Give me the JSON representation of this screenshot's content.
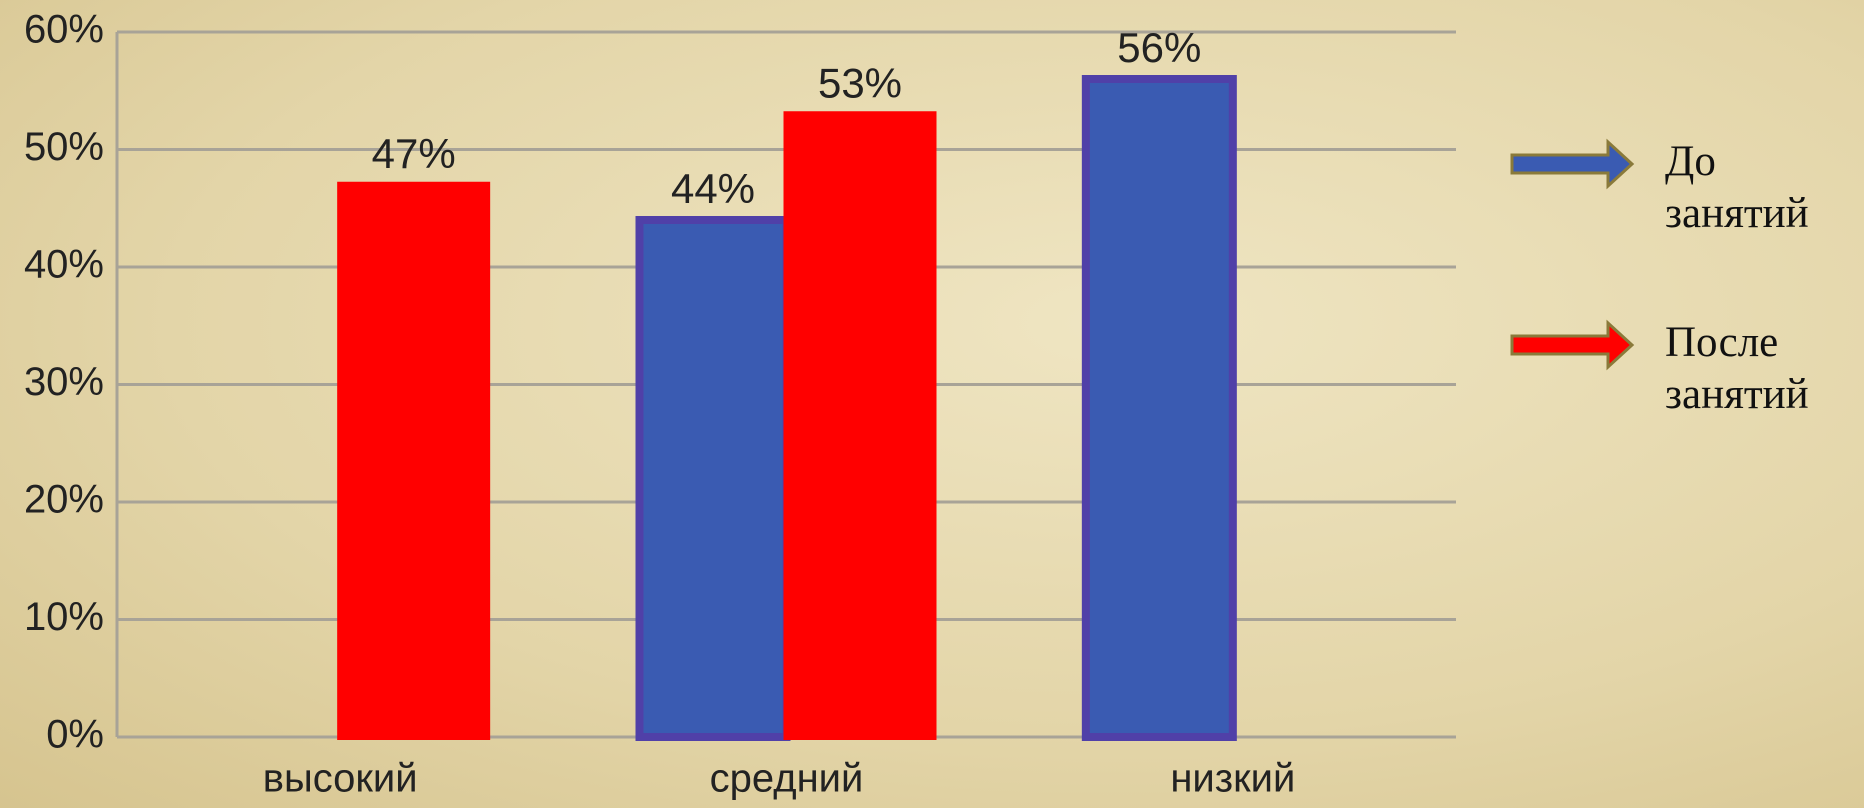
{
  "chart_data": {
    "type": "bar",
    "categories": [
      "высокий",
      "средний",
      "низкий"
    ],
    "series": [
      {
        "name": "До занятий",
        "color": "#3a5bb2",
        "values": [
          0,
          44,
          56
        ],
        "value_labels": [
          null,
          "44%",
          "56%"
        ]
      },
      {
        "name": "После занятий",
        "color": "#ff0000",
        "values": [
          47,
          53,
          0
        ],
        "value_labels": [
          "47%",
          "53%",
          null
        ]
      }
    ],
    "ylim": [
      0,
      60
    ],
    "yticks": [
      {
        "value": 0,
        "label": "0%"
      },
      {
        "value": 10,
        "label": "10%"
      },
      {
        "value": 20,
        "label": "20%"
      },
      {
        "value": 30,
        "label": "30%"
      },
      {
        "value": 40,
        "label": "40%"
      },
      {
        "value": 50,
        "label": "50%"
      },
      {
        "value": 60,
        "label": "60%"
      }
    ],
    "grid": true,
    "legend": "right"
  }
}
